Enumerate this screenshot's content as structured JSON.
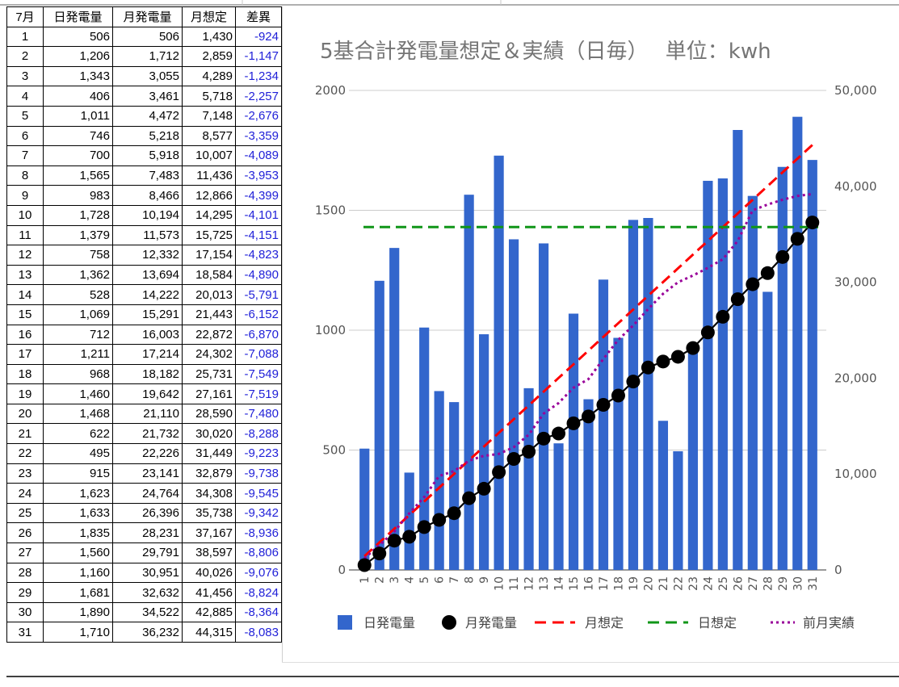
{
  "table": {
    "headers": [
      "7月",
      "日発電量",
      "月発電量",
      "月想定",
      "差異"
    ],
    "rows": [
      [
        "1",
        "506",
        "506",
        "1,430",
        "-924"
      ],
      [
        "2",
        "1,206",
        "1,712",
        "2,859",
        "-1,147"
      ],
      [
        "3",
        "1,343",
        "3,055",
        "4,289",
        "-1,234"
      ],
      [
        "4",
        "406",
        "3,461",
        "5,718",
        "-2,257"
      ],
      [
        "5",
        "1,011",
        "4,472",
        "7,148",
        "-2,676"
      ],
      [
        "6",
        "746",
        "5,218",
        "8,577",
        "-3,359"
      ],
      [
        "7",
        "700",
        "5,918",
        "10,007",
        "-4,089"
      ],
      [
        "8",
        "1,565",
        "7,483",
        "11,436",
        "-3,953"
      ],
      [
        "9",
        "983",
        "8,466",
        "12,866",
        "-4,399"
      ],
      [
        "10",
        "1,728",
        "10,194",
        "14,295",
        "-4,101"
      ],
      [
        "11",
        "1,379",
        "11,573",
        "15,725",
        "-4,151"
      ],
      [
        "12",
        "758",
        "12,332",
        "17,154",
        "-4,823"
      ],
      [
        "13",
        "1,362",
        "13,694",
        "18,584",
        "-4,890"
      ],
      [
        "14",
        "528",
        "14,222",
        "20,013",
        "-5,791"
      ],
      [
        "15",
        "1,069",
        "15,291",
        "21,443",
        "-6,152"
      ],
      [
        "16",
        "712",
        "16,003",
        "22,872",
        "-6,870"
      ],
      [
        "17",
        "1,211",
        "17,214",
        "24,302",
        "-7,088"
      ],
      [
        "18",
        "968",
        "18,182",
        "25,731",
        "-7,549"
      ],
      [
        "19",
        "1,460",
        "19,642",
        "27,161",
        "-7,519"
      ],
      [
        "20",
        "1,468",
        "21,110",
        "28,590",
        "-7,480"
      ],
      [
        "21",
        "622",
        "21,732",
        "30,020",
        "-8,288"
      ],
      [
        "22",
        "495",
        "22,226",
        "31,449",
        "-9,223"
      ],
      [
        "23",
        "915",
        "23,141",
        "32,879",
        "-9,738"
      ],
      [
        "24",
        "1,623",
        "24,764",
        "34,308",
        "-9,545"
      ],
      [
        "25",
        "1,633",
        "26,396",
        "35,738",
        "-9,342"
      ],
      [
        "26",
        "1,835",
        "28,231",
        "37,167",
        "-8,936"
      ],
      [
        "27",
        "1,560",
        "29,791",
        "38,597",
        "-8,806"
      ],
      [
        "28",
        "1,160",
        "30,951",
        "40,026",
        "-9,076"
      ],
      [
        "29",
        "1,681",
        "32,632",
        "41,456",
        "-8,824"
      ],
      [
        "30",
        "1,890",
        "34,522",
        "42,885",
        "-8,364"
      ],
      [
        "31",
        "1,710",
        "36,232",
        "44,315",
        "-8,083"
      ]
    ]
  },
  "chart_data": {
    "type": "bar",
    "title": "5基合計発電量想定＆実績（日毎）　 単位：kwh",
    "categories": [
      "1",
      "2",
      "3",
      "4",
      "5",
      "6",
      "7",
      "8",
      "9",
      "10",
      "11",
      "12",
      "13",
      "14",
      "15",
      "16",
      "17",
      "18",
      "19",
      "20",
      "21",
      "22",
      "23",
      "24",
      "25",
      "26",
      "27",
      "28",
      "29",
      "30",
      "31"
    ],
    "y_left": {
      "range": [
        0,
        2000
      ],
      "ticks": [
        "0",
        "500",
        "1000",
        "1500",
        "2000"
      ],
      "tick_values": [
        0,
        500,
        1000,
        1500,
        2000
      ]
    },
    "y_right": {
      "range": [
        0,
        50000
      ],
      "ticks": [
        "0",
        "10,000",
        "20,000",
        "30,000",
        "40,000",
        "50,000"
      ],
      "tick_values": [
        0,
        10000,
        20000,
        30000,
        40000,
        50000
      ]
    },
    "grid": true,
    "legend_position": "bottom",
    "series": [
      {
        "name": "日発電量",
        "kind": "bar",
        "axis": "left",
        "color": "#3366cc",
        "values": [
          506,
          1206,
          1343,
          406,
          1011,
          746,
          700,
          1565,
          983,
          1728,
          1379,
          758,
          1362,
          528,
          1069,
          712,
          1211,
          968,
          1460,
          1468,
          622,
          495,
          915,
          1623,
          1633,
          1835,
          1560,
          1160,
          1681,
          1890,
          1710
        ]
      },
      {
        "name": "月発電量",
        "kind": "line-markers",
        "axis": "right",
        "color": "#000000",
        "values": [
          506,
          1712,
          3055,
          3461,
          4472,
          5218,
          5918,
          7483,
          8466,
          10194,
          11573,
          12332,
          13694,
          14222,
          15291,
          16003,
          17214,
          18182,
          19642,
          21110,
          21732,
          22226,
          23141,
          24764,
          26396,
          28231,
          29791,
          30951,
          32632,
          34522,
          36232
        ]
      },
      {
        "name": "月想定",
        "kind": "dashed-line",
        "axis": "right",
        "color": "#ff0000",
        "values": [
          1430,
          2859,
          4289,
          5718,
          7148,
          8577,
          10007,
          11436,
          12866,
          14295,
          15725,
          17154,
          18584,
          20013,
          21443,
          22872,
          24302,
          25731,
          27161,
          28590,
          30020,
          31449,
          32879,
          34308,
          35738,
          37167,
          38597,
          40026,
          41456,
          42885,
          44315
        ]
      },
      {
        "name": "日想定",
        "kind": "dashed-line",
        "axis": "left",
        "color": "#109618",
        "values": [
          1430,
          1430,
          1430,
          1430,
          1430,
          1430,
          1430,
          1430,
          1430,
          1430,
          1430,
          1430,
          1430,
          1430,
          1430,
          1430,
          1430,
          1430,
          1430,
          1430,
          1430,
          1430,
          1430,
          1430,
          1430,
          1430,
          1430,
          1430,
          1430,
          1430,
          1430
        ]
      },
      {
        "name": "前月実績",
        "kind": "dotted-line",
        "axis": "right",
        "color": "#990099",
        "values": [
          1200,
          2600,
          4000,
          5900,
          7600,
          9800,
          10300,
          11400,
          11900,
          12100,
          12800,
          14100,
          16300,
          17400,
          19000,
          19900,
          22000,
          24000,
          25500,
          27200,
          28800,
          30000,
          30700,
          31500,
          32400,
          34300,
          37500,
          38100,
          38600,
          39000,
          39200
        ]
      }
    ]
  }
}
